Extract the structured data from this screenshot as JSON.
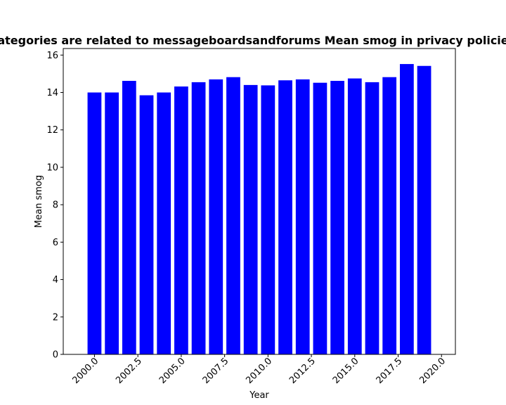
{
  "chart_data": {
    "type": "bar",
    "title": "categories are related to messageboardsandforums Mean smog in privacy policies",
    "xlabel": "Year",
    "ylabel": "Mean smog",
    "x": [
      2000,
      2001,
      2002,
      2003,
      2004,
      2005,
      2006,
      2007,
      2008,
      2009,
      2010,
      2011,
      2012,
      2013,
      2014,
      2015,
      2016,
      2017,
      2018,
      2019
    ],
    "values": [
      14.0,
      14.0,
      14.62,
      13.85,
      14.0,
      14.32,
      14.55,
      14.7,
      14.82,
      14.4,
      14.38,
      14.65,
      14.7,
      14.52,
      14.62,
      14.75,
      14.55,
      14.82,
      15.52,
      15.42
    ],
    "xlim": [
      1998.2,
      2020.8
    ],
    "ylim": [
      0,
      16.35
    ],
    "xticks": [
      2000.0,
      2002.5,
      2005.0,
      2007.5,
      2010.0,
      2012.5,
      2015.0,
      2017.5,
      2020.0
    ],
    "xtick_labels": [
      "2000.0",
      "2002.5",
      "2005.0",
      "2007.5",
      "2010.0",
      "2012.5",
      "2015.0",
      "2017.5",
      "2020.0"
    ],
    "yticks": [
      0,
      2,
      4,
      6,
      8,
      10,
      12,
      14,
      16
    ],
    "ytick_labels": [
      "0",
      "2",
      "4",
      "6",
      "8",
      "10",
      "12",
      "14",
      "16"
    ],
    "bar_color": "#0000ff",
    "grid": false,
    "legend": "none"
  }
}
